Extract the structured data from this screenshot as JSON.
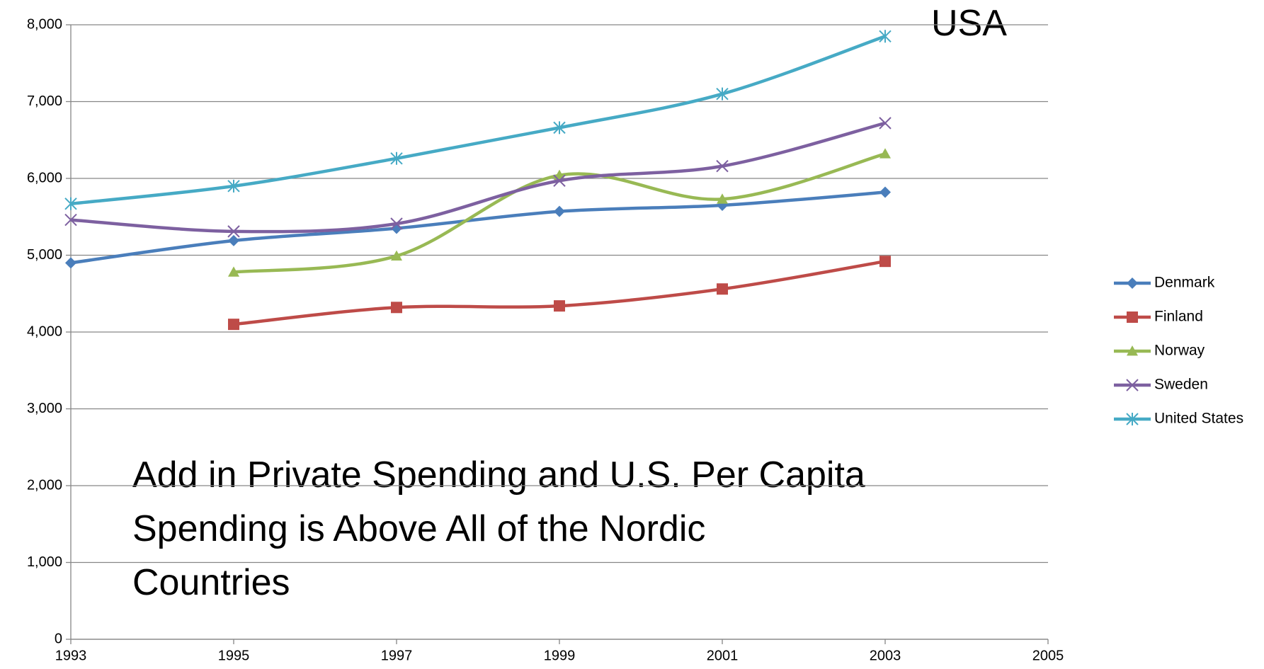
{
  "chart_data": {
    "type": "line",
    "x": [
      1993,
      1995,
      1997,
      1999,
      2001,
      2003
    ],
    "series": [
      {
        "name": "Denmark",
        "color": "#4a7ebb",
        "marker": "diamond",
        "values": [
          4900,
          5190,
          5350,
          5570,
          5650,
          5820
        ]
      },
      {
        "name": "Finland",
        "color": "#be4b48",
        "marker": "square",
        "values": [
          null,
          4100,
          4320,
          4340,
          4560,
          4920
        ]
      },
      {
        "name": "Norway",
        "color": "#98b954",
        "marker": "triangle",
        "values": [
          null,
          4780,
          4990,
          6040,
          5730,
          6320
        ]
      },
      {
        "name": "Sweden",
        "color": "#7d60a0",
        "marker": "x",
        "values": [
          5460,
          5310,
          5410,
          5970,
          6160,
          6720
        ]
      },
      {
        "name": "United States",
        "color": "#46aac5",
        "marker": "asterisk",
        "values": [
          5670,
          5900,
          6260,
          6660,
          7100,
          7850
        ]
      }
    ],
    "xlim": [
      1993,
      2005
    ],
    "xticks": [
      1993,
      1995,
      1997,
      1999,
      2001,
      2003,
      2005
    ],
    "ylim": [
      0,
      8000
    ],
    "yticks": [
      0,
      {
        "value": 1000,
        "label": "1,000"
      },
      {
        "value": 2000,
        "label": "2,000"
      },
      {
        "value": 3000,
        "label": "3,000"
      },
      {
        "value": 4000,
        "label": "4,000"
      },
      {
        "value": 5000,
        "label": "5,000"
      },
      {
        "value": 6000,
        "label": "6,000"
      },
      {
        "value": 7000,
        "label": "7,000"
      },
      {
        "value": 8000,
        "label": "8,000"
      }
    ],
    "grid": true,
    "legend": "right",
    "annotations": [
      "USA",
      [
        "Add in Private Spending and U.S. Per Capita",
        "Spending is Above All of the Nordic",
        "Countries"
      ]
    ]
  }
}
